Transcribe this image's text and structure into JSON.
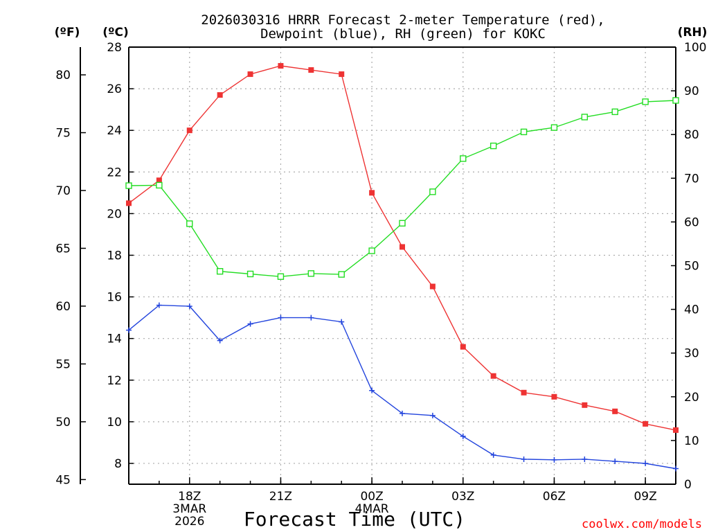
{
  "chart_data": {
    "type": "line",
    "title_lines": [
      "2026030316 HRRR Forecast 2-meter Temperature (red),",
      "Dewpoint (blue), RH (green) for KOKC"
    ],
    "xlabel": "Forecast Time (UTC)",
    "credit": "coolwx.com/models",
    "axes": {
      "left_f": {
        "unit_label": "(ºF)",
        "range": [
          44.6,
          82.4
        ],
        "ticks": [
          45,
          50,
          55,
          60,
          65,
          70,
          75,
          80
        ]
      },
      "left_c": {
        "unit_label": "(ºC)",
        "range": [
          7,
          28
        ],
        "ticks": [
          8,
          10,
          12,
          14,
          16,
          18,
          20,
          22,
          24,
          26,
          28
        ]
      },
      "right_rh": {
        "unit_label": "(RH)",
        "range": [
          0,
          100
        ],
        "ticks": [
          0,
          10,
          20,
          30,
          40,
          50,
          60,
          70,
          80,
          90,
          100
        ]
      }
    },
    "x": {
      "range": [
        0,
        18
      ],
      "count": 19
    },
    "x_tick_labels": [
      {
        "x": 2,
        "lines": [
          "18Z",
          "3MAR",
          "2026"
        ]
      },
      {
        "x": 5,
        "lines": [
          "21Z"
        ]
      },
      {
        "x": 8,
        "lines": [
          "00Z",
          "4MAR"
        ]
      },
      {
        "x": 11,
        "lines": [
          "03Z"
        ]
      },
      {
        "x": 14,
        "lines": [
          "06Z"
        ]
      },
      {
        "x": 17,
        "lines": [
          "09Z"
        ]
      }
    ],
    "series": [
      {
        "name": "Temperature",
        "axis": "left_c",
        "color": "#ee3333",
        "marker": "square-filled",
        "values": [
          20.5,
          21.6,
          24.0,
          25.7,
          26.7,
          27.1,
          26.9,
          26.7,
          21.0,
          18.4,
          16.5,
          13.6,
          12.2,
          11.4,
          11.2,
          10.8,
          10.5,
          9.9,
          9.6
        ]
      },
      {
        "name": "Dewpoint",
        "axis": "left_c",
        "color": "#2244dd",
        "marker": "plus",
        "values": [
          14.4,
          15.6,
          15.55,
          13.9,
          14.7,
          15.0,
          15.0,
          14.8,
          11.5,
          10.4,
          10.3,
          9.3,
          8.4,
          8.2,
          8.17,
          8.2,
          8.1,
          8.0,
          7.75
        ]
      },
      {
        "name": "RH",
        "axis": "right_rh",
        "color": "#22dd22",
        "marker": "square-open",
        "values": [
          68.3,
          68.4,
          59.6,
          48.7,
          48.1,
          47.5,
          48.2,
          48.0,
          53.4,
          59.7,
          66.9,
          74.5,
          77.4,
          80.6,
          81.6,
          84.0,
          85.2,
          87.5,
          87.8
        ]
      }
    ]
  }
}
